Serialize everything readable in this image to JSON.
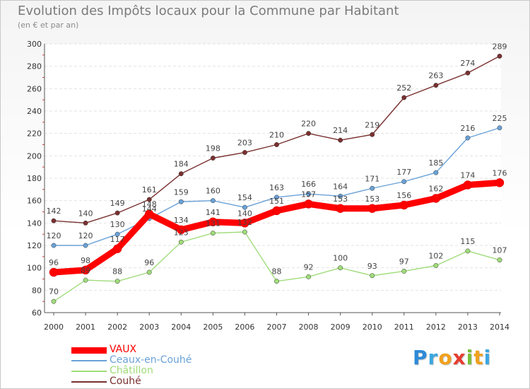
{
  "header": {
    "title": "Evolution des Impôts locaux pour la Commune par Habitant",
    "subtitle": "(en € et par an)"
  },
  "logo": {
    "letters": [
      {
        "char": "P",
        "color": "#2e8ad8"
      },
      {
        "char": "r",
        "color": "#3aa7e0"
      },
      {
        "char": "o",
        "color": "#f0a11e"
      },
      {
        "char": "x",
        "color": "#e53d2f"
      },
      {
        "char": "i",
        "color": "#7bbf3a"
      },
      {
        "char": "t",
        "color": "#f0a11e"
      },
      {
        "char": "i",
        "color": "#3aa7e0"
      }
    ]
  },
  "chart_data": {
    "type": "line",
    "title": "Evolution des Impôts locaux pour la Commune par Habitant",
    "subtitle": "(en € et par an)",
    "x": [
      2000,
      2001,
      2002,
      2003,
      2004,
      2005,
      2006,
      2007,
      2008,
      2009,
      2010,
      2011,
      2012,
      2013,
      2014
    ],
    "ylim": [
      60,
      300
    ],
    "yticks": [
      60,
      80,
      100,
      120,
      140,
      160,
      180,
      200,
      220,
      240,
      260,
      280,
      300
    ],
    "grid": "horizontal",
    "legend_position": "bottom-left",
    "series": [
      {
        "name": "VAUX",
        "color": "#ff0000",
        "values": [
          96,
          98,
          117,
          148,
          134,
          141,
          140,
          151,
          157,
          153,
          153,
          156,
          162,
          174,
          176
        ]
      },
      {
        "name": "Ceaux-en-Couhé",
        "color": "#6aa2d8",
        "values": [
          120,
          120,
          130,
          144,
          159,
          160,
          154,
          163,
          166,
          164,
          171,
          177,
          185,
          216,
          225
        ]
      },
      {
        "name": "Châtillon",
        "color": "#a0dc7a",
        "values": [
          70,
          89,
          88,
          96,
          123,
          131,
          132,
          88,
          92,
          100,
          93,
          97,
          102,
          115,
          107
        ]
      },
      {
        "name": "Couhé",
        "color": "#7a3030",
        "values": [
          142,
          140,
          149,
          161,
          184,
          198,
          203,
          210,
          220,
          214,
          219,
          252,
          263,
          274,
          289
        ]
      }
    ]
  }
}
